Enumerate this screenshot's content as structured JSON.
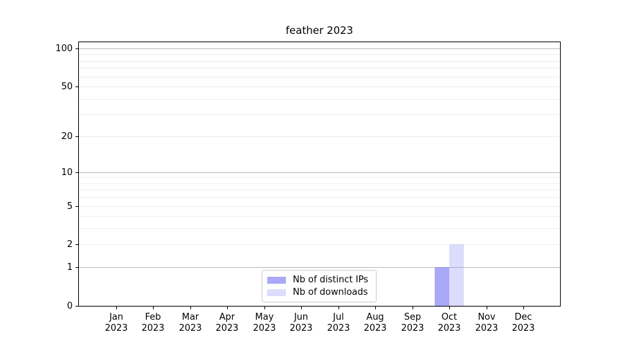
{
  "chart_data": {
    "type": "bar",
    "title": "feather 2023",
    "categories": [
      "Jan 2023",
      "Feb 2023",
      "Mar 2023",
      "Apr 2023",
      "May 2023",
      "Jun 2023",
      "Jul 2023",
      "Aug 2023",
      "Sep 2023",
      "Oct 2023",
      "Nov 2023",
      "Dec 2023"
    ],
    "series": [
      {
        "name": "Nb of distinct IPs",
        "color": "#7c7cf4",
        "alpha": 0.66,
        "values": [
          0,
          0,
          0,
          0,
          0,
          0,
          0,
          0,
          0,
          1,
          0,
          0
        ]
      },
      {
        "name": "Nb of downloads",
        "color": "#7c7cf4",
        "alpha": 0.27,
        "values": [
          0,
          0,
          0,
          0,
          0,
          0,
          0,
          0,
          0,
          2,
          0,
          0
        ]
      }
    ],
    "xlabel": "",
    "ylabel": "",
    "yscale": "log1p",
    "ylim": [
      0,
      113
    ],
    "yticks": [
      0,
      1,
      2,
      5,
      10,
      20,
      50,
      100
    ],
    "gridlines_major": [
      1,
      10,
      100
    ],
    "gridlines_minor": [
      2,
      3,
      4,
      5,
      6,
      7,
      8,
      9,
      20,
      30,
      40,
      50,
      60,
      70,
      80,
      90
    ],
    "grid": true,
    "legend_position": "lower center"
  }
}
